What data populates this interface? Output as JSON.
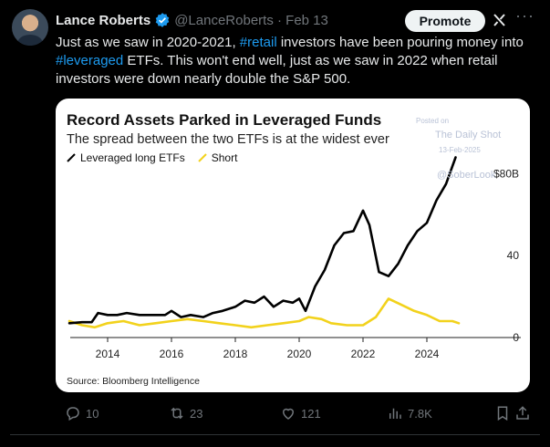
{
  "post": {
    "author_name": "Lance Roberts",
    "handle_date": "@LanceRoberts · Feb 13",
    "promote_label": "Promote",
    "text_parts": [
      "Just as we saw in 2020-2021, ",
      "#retail",
      " investors have been pouring money into ",
      "#leveraged",
      " ETFs. This won't end well, just as we saw in 2022 when retail investors were down nearly double the S&P 500."
    ]
  },
  "card": {
    "watermark": [
      "Posted on",
      "The Daily Shot",
      "13-Feb-2025",
      "@SoberLook"
    ],
    "source": "Source: Bloomberg Intelligence"
  },
  "chart_data": {
    "type": "line",
    "title": "Record Assets Parked in Leveraged Funds",
    "subtitle": "The spread between the two ETFs is at the widest ever",
    "legend": [
      "Leveraged long ETFs",
      "Short"
    ],
    "legend_position": "top-left",
    "grid": false,
    "x_ticks": [
      "2014",
      "2016",
      "2018",
      "2020",
      "2022",
      "2024"
    ],
    "y_ticks": [
      "$80B",
      "40",
      "0"
    ],
    "ylim": [
      0,
      90
    ],
    "xlim": [
      2012.6,
      2025.8
    ],
    "colors": {
      "long": "#000000",
      "short": "#f2d21c"
    },
    "series": [
      {
        "name": "Leveraged long ETFs",
        "x": [
          2012.8,
          2013.2,
          2013.5,
          2013.7,
          2014.0,
          2014.3,
          2014.6,
          2015.0,
          2015.4,
          2015.8,
          2016.0,
          2016.3,
          2016.6,
          2017.0,
          2017.3,
          2017.6,
          2018.0,
          2018.3,
          2018.6,
          2018.9,
          2019.2,
          2019.5,
          2019.8,
          2020.0,
          2020.2,
          2020.5,
          2020.8,
          2021.1,
          2021.4,
          2021.7,
          2022.0,
          2022.2,
          2022.5,
          2022.8,
          2023.1,
          2023.4,
          2023.7,
          2024.0,
          2024.3,
          2024.6,
          2024.9
        ],
        "values": [
          7,
          7.5,
          7.5,
          12,
          11,
          11,
          12,
          11,
          11,
          11,
          13,
          10,
          11,
          10,
          12,
          13,
          15,
          18,
          17,
          20,
          15,
          18,
          17,
          19,
          13,
          25,
          33,
          45,
          51,
          52,
          62,
          55,
          32,
          30,
          36,
          45,
          52,
          56,
          67,
          75,
          88
        ]
      },
      {
        "name": "Short",
        "x": [
          2012.8,
          2013.2,
          2013.6,
          2014.0,
          2014.5,
          2015.0,
          2015.5,
          2016.0,
          2016.5,
          2017.0,
          2017.5,
          2018.0,
          2018.5,
          2019.0,
          2019.5,
          2020.0,
          2020.3,
          2020.7,
          2021.0,
          2021.5,
          2022.0,
          2022.4,
          2022.8,
          2023.2,
          2023.6,
          2024.0,
          2024.4,
          2024.8,
          2025.0
        ],
        "values": [
          8,
          6,
          5,
          7,
          8,
          6,
          7,
          8,
          9,
          8,
          7,
          6,
          5,
          6,
          7,
          8,
          10,
          9,
          7,
          6,
          6,
          10,
          19,
          16,
          13,
          11,
          8,
          8,
          7
        ]
      }
    ]
  },
  "actions": {
    "reply_count": "10",
    "repost_count": "23",
    "like_count": "121",
    "views_count": "7.8K"
  }
}
